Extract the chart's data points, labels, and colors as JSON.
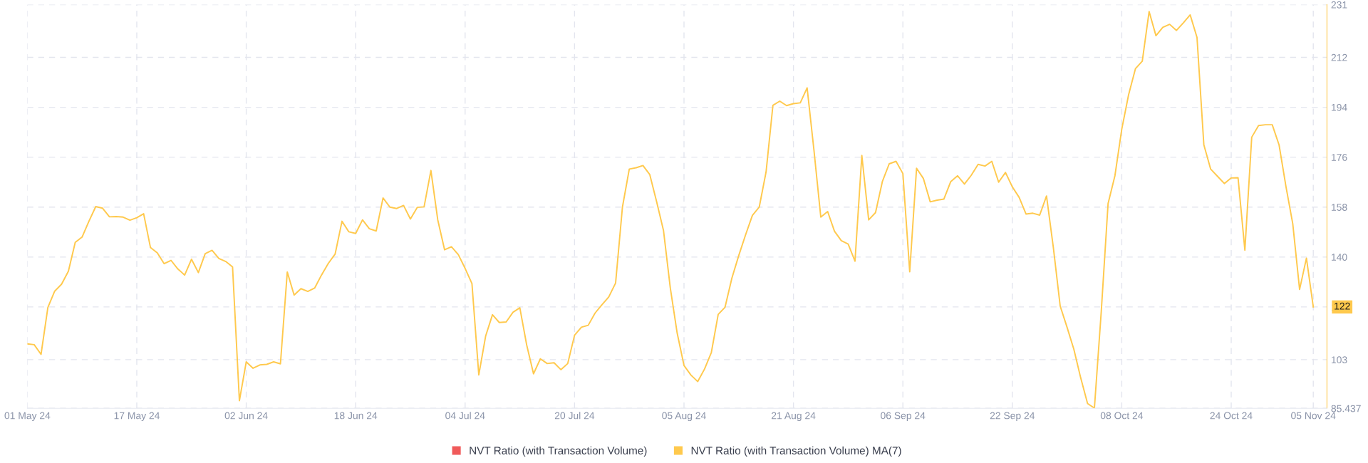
{
  "chart_data": {
    "type": "line",
    "x": [
      "2024-05-01",
      "2024-05-02",
      "2024-05-03",
      "2024-05-04",
      "2024-05-05",
      "2024-05-06",
      "2024-05-07",
      "2024-05-08",
      "2024-05-09",
      "2024-05-10",
      "2024-05-11",
      "2024-05-12",
      "2024-05-13",
      "2024-05-14",
      "2024-05-15",
      "2024-05-16",
      "2024-05-17",
      "2024-05-18",
      "2024-05-19",
      "2024-05-20",
      "2024-05-21",
      "2024-05-22",
      "2024-05-23",
      "2024-05-24",
      "2024-05-25",
      "2024-05-26",
      "2024-05-27",
      "2024-05-28",
      "2024-05-29",
      "2024-05-30",
      "2024-05-31",
      "2024-06-01",
      "2024-06-02",
      "2024-06-03",
      "2024-06-04",
      "2024-06-05",
      "2024-06-06",
      "2024-06-07",
      "2024-06-08",
      "2024-06-09",
      "2024-06-10",
      "2024-06-11",
      "2024-06-12",
      "2024-06-13",
      "2024-06-14",
      "2024-06-15",
      "2024-06-16",
      "2024-06-17",
      "2024-06-18",
      "2024-06-19",
      "2024-06-20",
      "2024-06-21",
      "2024-06-22",
      "2024-06-23",
      "2024-06-24",
      "2024-06-25",
      "2024-06-26",
      "2024-06-27",
      "2024-06-28",
      "2024-06-29",
      "2024-06-30",
      "2024-07-01",
      "2024-07-02",
      "2024-07-03",
      "2024-07-04",
      "2024-07-05",
      "2024-07-06",
      "2024-07-07",
      "2024-07-08",
      "2024-07-09",
      "2024-07-10",
      "2024-07-11",
      "2024-07-12",
      "2024-07-13",
      "2024-07-14",
      "2024-07-15",
      "2024-07-16",
      "2024-07-17",
      "2024-07-18",
      "2024-07-19",
      "2024-07-20",
      "2024-07-21",
      "2024-07-22",
      "2024-07-23",
      "2024-07-24",
      "2024-07-25",
      "2024-07-26",
      "2024-07-27",
      "2024-07-28",
      "2024-07-29",
      "2024-07-30",
      "2024-07-31",
      "2024-08-01",
      "2024-08-02",
      "2024-08-03",
      "2024-08-04",
      "2024-08-05",
      "2024-08-06",
      "2024-08-07",
      "2024-08-08",
      "2024-08-09",
      "2024-08-10",
      "2024-08-11",
      "2024-08-12",
      "2024-08-13",
      "2024-08-14",
      "2024-08-15",
      "2024-08-16",
      "2024-08-17",
      "2024-08-18",
      "2024-08-19",
      "2024-08-20",
      "2024-08-21",
      "2024-08-22",
      "2024-08-23",
      "2024-08-24",
      "2024-08-25",
      "2024-08-26",
      "2024-08-27",
      "2024-08-28",
      "2024-08-29",
      "2024-08-30",
      "2024-08-31",
      "2024-09-01",
      "2024-09-02",
      "2024-09-03",
      "2024-09-04",
      "2024-09-05",
      "2024-09-06",
      "2024-09-07",
      "2024-09-08",
      "2024-09-09",
      "2024-09-10",
      "2024-09-11",
      "2024-09-12",
      "2024-09-13",
      "2024-09-14",
      "2024-09-15",
      "2024-09-16",
      "2024-09-17",
      "2024-09-18",
      "2024-09-19",
      "2024-09-20",
      "2024-09-21",
      "2024-09-22",
      "2024-09-23",
      "2024-09-24",
      "2024-09-25",
      "2024-09-26",
      "2024-09-27",
      "2024-09-28",
      "2024-09-29",
      "2024-09-30",
      "2024-10-01",
      "2024-10-02",
      "2024-10-03",
      "2024-10-04",
      "2024-10-05",
      "2024-10-06",
      "2024-10-07",
      "2024-10-08",
      "2024-10-09",
      "2024-10-10",
      "2024-10-11",
      "2024-10-12",
      "2024-10-13",
      "2024-10-14",
      "2024-10-15",
      "2024-10-16",
      "2024-10-17",
      "2024-10-18",
      "2024-10-19",
      "2024-10-20",
      "2024-10-21",
      "2024-10-22",
      "2024-10-23",
      "2024-10-24",
      "2024-10-25",
      "2024-10-26",
      "2024-10-27",
      "2024-10-28",
      "2024-10-29",
      "2024-10-30",
      "2024-10-31",
      "2024-11-01",
      "2024-11-02",
      "2024-11-03",
      "2024-11-04",
      "2024-11-05"
    ],
    "series": [
      {
        "name": "NVT Ratio (with Transaction Volume)",
        "color": "#f05a5a",
        "values": [
          null,
          null,
          null,
          null,
          null,
          null,
          null,
          null,
          null,
          null,
          null,
          null,
          null,
          null,
          null,
          null,
          null,
          null,
          null,
          null,
          null,
          null,
          null,
          null,
          null,
          null,
          null,
          null,
          null,
          null,
          null,
          null,
          null,
          null,
          null,
          null,
          null,
          null,
          null,
          null,
          null,
          null,
          null,
          null,
          null,
          null,
          null,
          null,
          null,
          null,
          null,
          null,
          null,
          null,
          null,
          null,
          null,
          null,
          null,
          null,
          null,
          null,
          null,
          null,
          null,
          null,
          null,
          null,
          null,
          null,
          null,
          null,
          null,
          null,
          null,
          null,
          null,
          null,
          null,
          null,
          null,
          null,
          null,
          null,
          null,
          null,
          null,
          null,
          null,
          null,
          null,
          null,
          null,
          null,
          null,
          null,
          null,
          null,
          null,
          null,
          null,
          null,
          null,
          null,
          null,
          null,
          null,
          null,
          null,
          null,
          null,
          null,
          null,
          null,
          null,
          null,
          null,
          null,
          null,
          null,
          null,
          null,
          null,
          null,
          null,
          null,
          null,
          null,
          null,
          null,
          null,
          null,
          null,
          null,
          null,
          null,
          null,
          null,
          null,
          null,
          null,
          null,
          null,
          null,
          null,
          null,
          null,
          null,
          null,
          null,
          null,
          null,
          null,
          null,
          null,
          null,
          null,
          null,
          null,
          null,
          null,
          null,
          null,
          null,
          null,
          null,
          null,
          null,
          null,
          null,
          null,
          null,
          null,
          null,
          null,
          null,
          null,
          null,
          null,
          null,
          null,
          null,
          null,
          null,
          null,
          null,
          null,
          null,
          null
        ]
      },
      {
        "name": "NVT Ratio (with Transaction Volume) MA(7)",
        "color": "#ffc94d",
        "values": [
          108.7,
          108.4,
          104.9,
          121.8,
          127.7,
          130.2,
          134.9,
          145.3,
          147.2,
          152.9,
          158.2,
          157.6,
          154.5,
          154.6,
          154.4,
          153.3,
          154.2,
          155.6,
          143.4,
          141.5,
          137.6,
          138.8,
          135.7,
          133.5,
          139.2,
          134.4,
          141.2,
          142.4,
          139.5,
          138.4,
          136.4,
          88.2,
          102.2,
          99.9,
          101.1,
          101.3,
          102.2,
          101.5,
          134.6,
          126.3,
          128.6,
          127.6,
          128.8,
          133.5,
          137.7,
          141.1,
          152.9,
          149.1,
          148.5,
          153.4,
          150.2,
          149.4,
          161.3,
          158.0,
          157.5,
          158.6,
          153.7,
          157.9,
          158.1,
          171.2,
          153.4,
          142.6,
          143.7,
          140.9,
          135.9,
          130.4,
          97.5,
          111.5,
          119.2,
          116.4,
          116.6,
          120.1,
          121.7,
          108.3,
          97.9,
          103.3,
          101.6,
          101.9,
          99.4,
          101.6,
          111.8,
          114.7,
          115.4,
          119.8,
          122.8,
          125.6,
          130.6,
          158.0,
          171.7,
          172.2,
          173.0,
          169.7,
          159.9,
          149.6,
          128.8,
          112.6,
          100.9,
          97.5,
          95.1,
          99.6,
          105.6,
          119.3,
          121.9,
          132.4,
          140.5,
          148.0,
          155.0,
          158.0,
          170.7,
          194.7,
          196.2,
          194.6,
          195.3,
          195.6,
          201.0,
          178.5,
          154.4,
          156.4,
          149.3,
          145.9,
          144.7,
          138.5,
          176.6,
          153.4,
          156.0,
          167.2,
          173.6,
          174.5,
          170.1,
          134.7,
          172.0,
          168.3,
          159.9,
          160.5,
          160.9,
          167.2,
          169.3,
          166.3,
          169.5,
          173.4,
          172.8,
          174.5,
          167.0,
          170.5,
          165.3,
          161.5,
          155.5,
          155.8,
          155.1,
          162.0,
          143.4,
          122.3,
          114.7,
          106.7,
          96.4,
          87.2,
          85.5,
          120.2,
          159.3,
          169.3,
          186.1,
          198.5,
          207.9,
          210.6,
          228.5,
          219.8,
          222.8,
          223.9,
          221.7,
          224.4,
          227.3,
          219.2,
          180.5,
          171.7,
          169.1,
          166.5,
          168.5,
          168.6,
          142.5,
          183.2,
          187.4,
          187.7,
          187.7,
          180.4,
          165.5,
          152.0,
          128.3,
          139.6,
          122
        ]
      }
    ],
    "xlim": [
      "2024-05-01",
      "2024-11-07"
    ],
    "xticks": [
      {
        "value": "2024-05-01",
        "label": "01 May 24"
      },
      {
        "value": "2024-05-17",
        "label": "17 May 24"
      },
      {
        "value": "2024-06-02",
        "label": "02 Jun 24"
      },
      {
        "value": "2024-06-18",
        "label": "18 Jun 24"
      },
      {
        "value": "2024-07-04",
        "label": "04 Jul 24"
      },
      {
        "value": "2024-07-20",
        "label": "20 Jul 24"
      },
      {
        "value": "2024-08-05",
        "label": "05 Aug 24"
      },
      {
        "value": "2024-08-21",
        "label": "21 Aug 24"
      },
      {
        "value": "2024-09-06",
        "label": "06 Sep 24"
      },
      {
        "value": "2024-09-22",
        "label": "22 Sep 24"
      },
      {
        "value": "2024-10-08",
        "label": "08 Oct 24"
      },
      {
        "value": "2024-10-24",
        "label": "24 Oct 24"
      },
      {
        "value": "2024-11-05",
        "label": "05 Nov 24"
      }
    ],
    "ylim": [
      85.437,
      231
    ],
    "yticks": [
      85.437,
      103,
      122,
      140,
      158,
      176,
      194,
      212,
      231
    ],
    "annotations": [
      "122"
    ],
    "grid": true,
    "legend": "bottom",
    "marker": "none",
    "line_style": "solid"
  }
}
